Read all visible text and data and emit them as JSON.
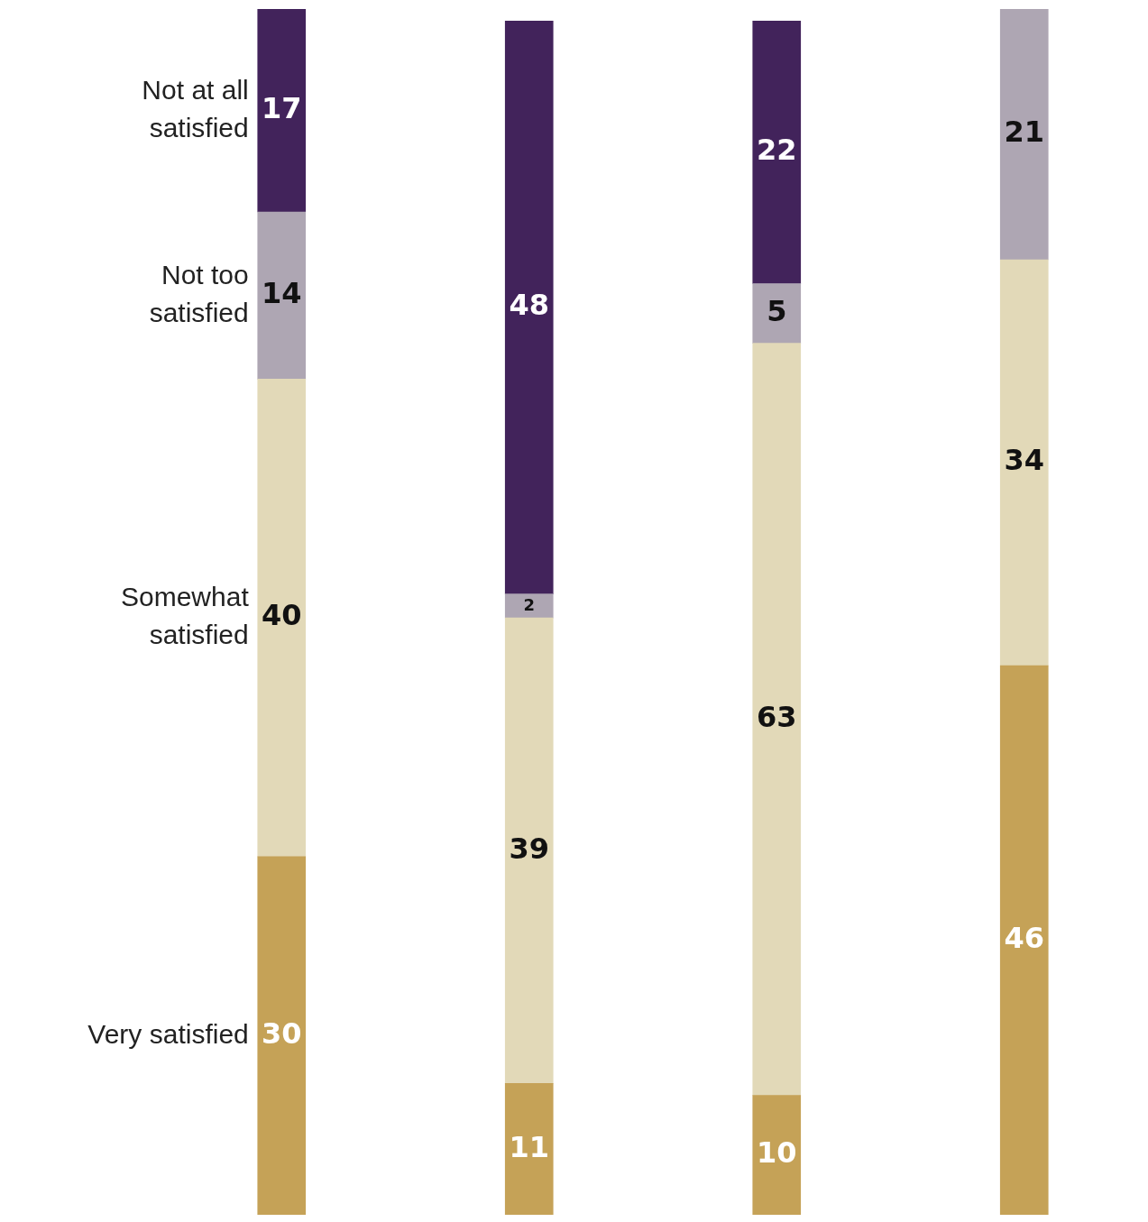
{
  "chart_data": {
    "type": "bar",
    "stacked": true,
    "categories": [
      null,
      null,
      null,
      null
    ],
    "legend": false,
    "grid": false,
    "tick_labels": false,
    "data_labels": true,
    "series": [
      {
        "name": "Very satisfied",
        "color": "#c5a257",
        "values": [
          30,
          11,
          10,
          46
        ]
      },
      {
        "name": "Somewhat satisfied",
        "color": "#e2d9b8",
        "values": [
          40,
          39,
          63,
          34
        ]
      },
      {
        "name": "Not too satisfied",
        "color": "#aea6b3",
        "values": [
          14,
          2,
          5,
          21
        ]
      },
      {
        "name": "Not at all satisfied",
        "color": "#42235b",
        "values": [
          17,
          48,
          22,
          null
        ]
      }
    ]
  }
}
